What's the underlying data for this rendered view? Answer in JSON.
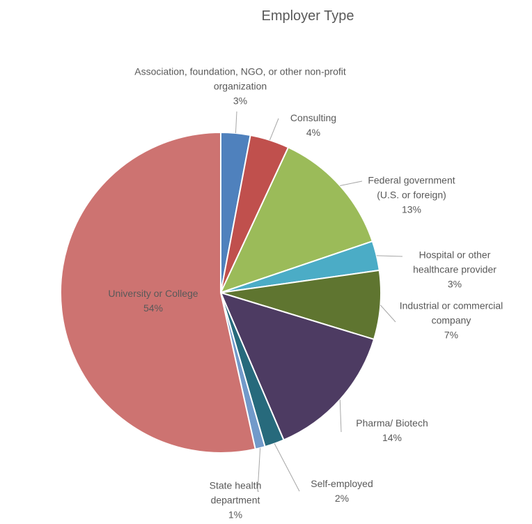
{
  "chart_data": {
    "type": "pie",
    "title": "Employer Type",
    "categories": [
      "Association, foundation, NGO, or other non-profit organization",
      "Consulting",
      "Federal government (U.S. or foreign)",
      "Hospital or other healthcare provider",
      "Industrial or commercial company",
      "Pharma/ Biotech",
      "Self-employed",
      "State health department",
      "University or College"
    ],
    "values": [
      3,
      4,
      13,
      3,
      7,
      14,
      2,
      1,
      54
    ],
    "value_labels": [
      "3%",
      "4%",
      "13%",
      "3%",
      "7%",
      "14%",
      "2%",
      "1%",
      "54%"
    ],
    "colors": [
      "#4f81bd",
      "#c0504d",
      "#9bbb59",
      "#4bacc6",
      "#5f7530",
      "#4d3b62",
      "#276a7c",
      "#729aca",
      "#cd7371"
    ]
  }
}
